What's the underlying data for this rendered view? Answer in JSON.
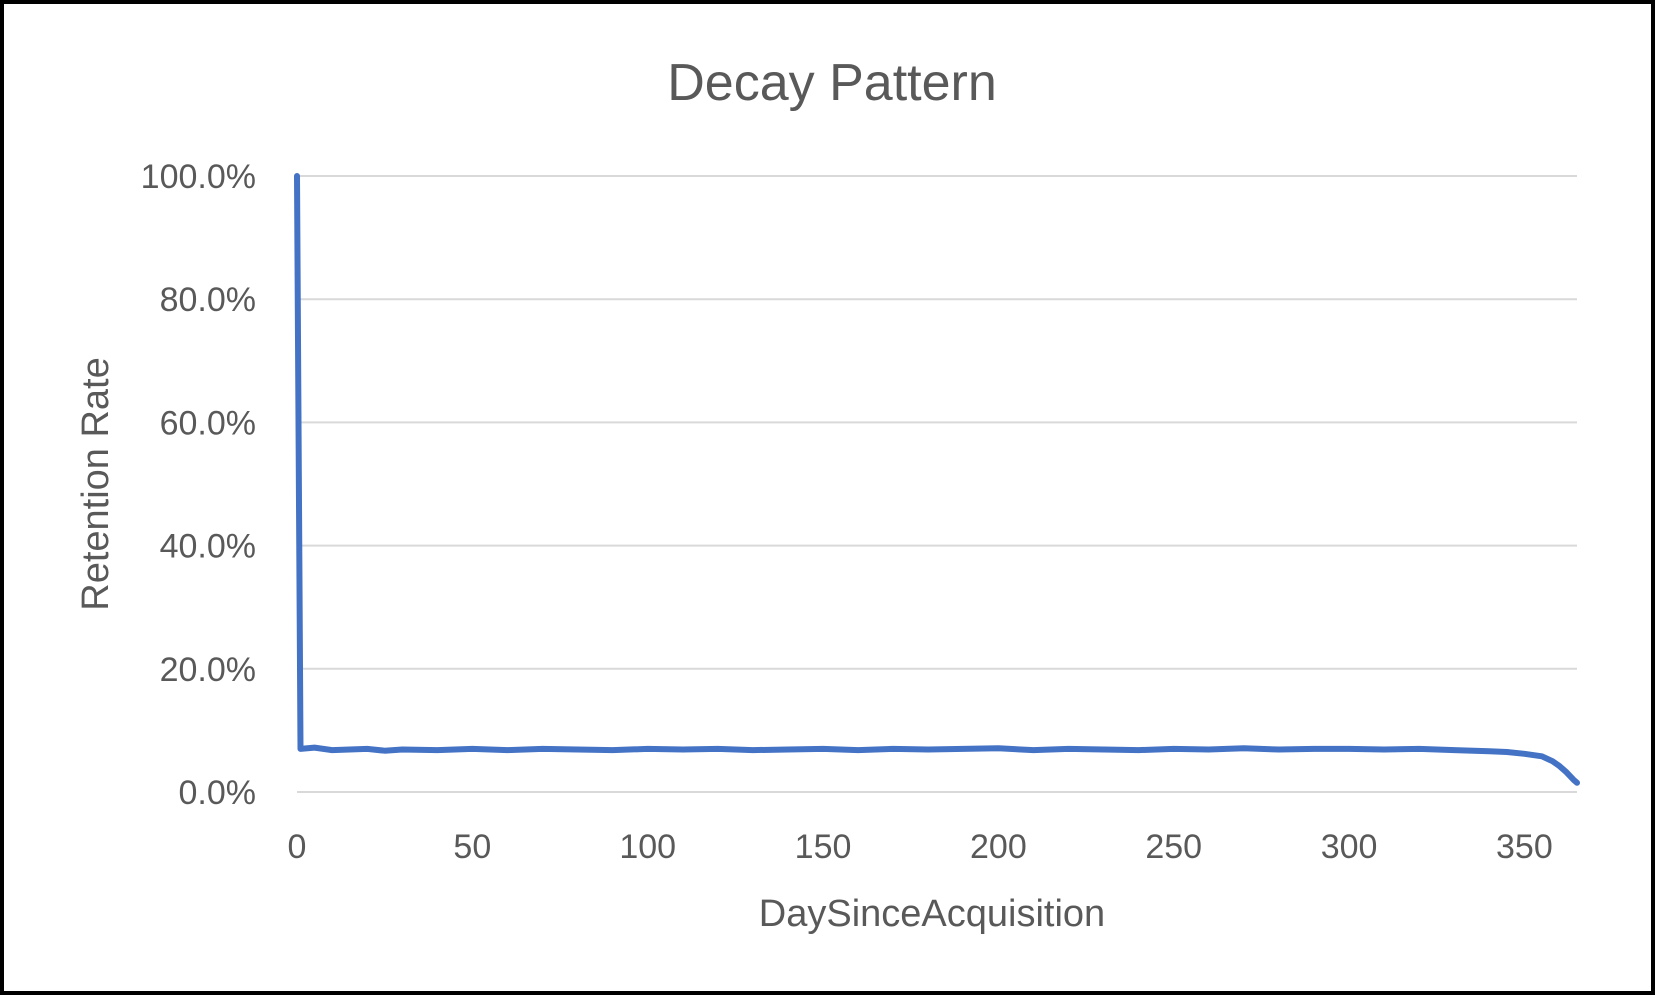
{
  "chart_data": {
    "type": "line",
    "title": "Decay Pattern",
    "xlabel": "DaySinceAcquisition",
    "ylabel": "Retention Rate",
    "xlim": [
      0,
      365
    ],
    "ylim": [
      0,
      100
    ],
    "x_ticks": [
      0,
      50,
      100,
      150,
      200,
      250,
      300,
      350
    ],
    "x_tick_labels": [
      "0",
      "50",
      "100",
      "150",
      "200",
      "250",
      "300",
      "350"
    ],
    "y_ticks": [
      0,
      20,
      40,
      60,
      80,
      100
    ],
    "y_tick_labels": [
      "0.0%",
      "20.0%",
      "40.0%",
      "60.0%",
      "80.0%",
      "100.0%"
    ],
    "grid": true,
    "legend": "none",
    "series": [
      {
        "color": "#4472C4",
        "x": [
          0,
          1,
          5,
          10,
          15,
          20,
          25,
          30,
          40,
          50,
          60,
          70,
          80,
          90,
          100,
          110,
          120,
          130,
          140,
          150,
          160,
          170,
          180,
          190,
          200,
          210,
          220,
          230,
          240,
          250,
          260,
          270,
          280,
          290,
          300,
          310,
          320,
          330,
          340,
          345,
          350,
          355,
          358,
          360,
          362,
          364,
          365
        ],
        "y": [
          100.0,
          7.0,
          7.2,
          6.8,
          6.9,
          7.0,
          6.7,
          6.9,
          6.8,
          7.0,
          6.8,
          7.0,
          6.9,
          6.8,
          7.0,
          6.9,
          7.0,
          6.8,
          6.9,
          7.0,
          6.8,
          7.0,
          6.9,
          7.0,
          7.1,
          6.8,
          7.0,
          6.9,
          6.8,
          7.0,
          6.9,
          7.1,
          6.9,
          7.0,
          7.0,
          6.9,
          7.0,
          6.8,
          6.6,
          6.5,
          6.2,
          5.8,
          5.0,
          4.2,
          3.2,
          2.0,
          1.5
        ]
      }
    ]
  }
}
